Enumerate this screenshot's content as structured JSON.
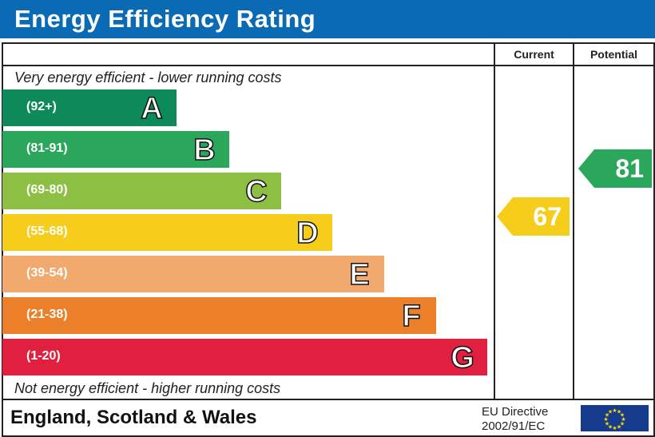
{
  "title": "Energy Efficiency Rating",
  "columns": {
    "current": "Current",
    "potential": "Potential"
  },
  "top_note": "Very energy efficient - lower running costs",
  "bottom_note": "Not energy efficient - higher running costs",
  "footer": {
    "region": "England, Scotland & Wales",
    "directive_line1": "EU Directive",
    "directive_line2": "2002/91/EC",
    "flag_icon": "eu-flag-icon"
  },
  "chart_data": {
    "type": "bar",
    "bands": [
      {
        "letter": "A",
        "range": "(92+)",
        "color": "#0e8a5a"
      },
      {
        "letter": "B",
        "range": "(81-91)",
        "color": "#2aa75a"
      },
      {
        "letter": "C",
        "range": "(69-80)",
        "color": "#8cbf44"
      },
      {
        "letter": "D",
        "range": "(55-68)",
        "color": "#f6cd1a"
      },
      {
        "letter": "E",
        "range": "(39-54)",
        "color": "#f1a96e"
      },
      {
        "letter": "F",
        "range": "(21-38)",
        "color": "#ec7f29"
      },
      {
        "letter": "G",
        "range": "(1-20)",
        "color": "#e0203e"
      }
    ],
    "current": {
      "value": "67",
      "band": "D",
      "color": "#f6cd1a"
    },
    "potential": {
      "value": "81",
      "band": "B",
      "color": "#2aa75a"
    }
  }
}
